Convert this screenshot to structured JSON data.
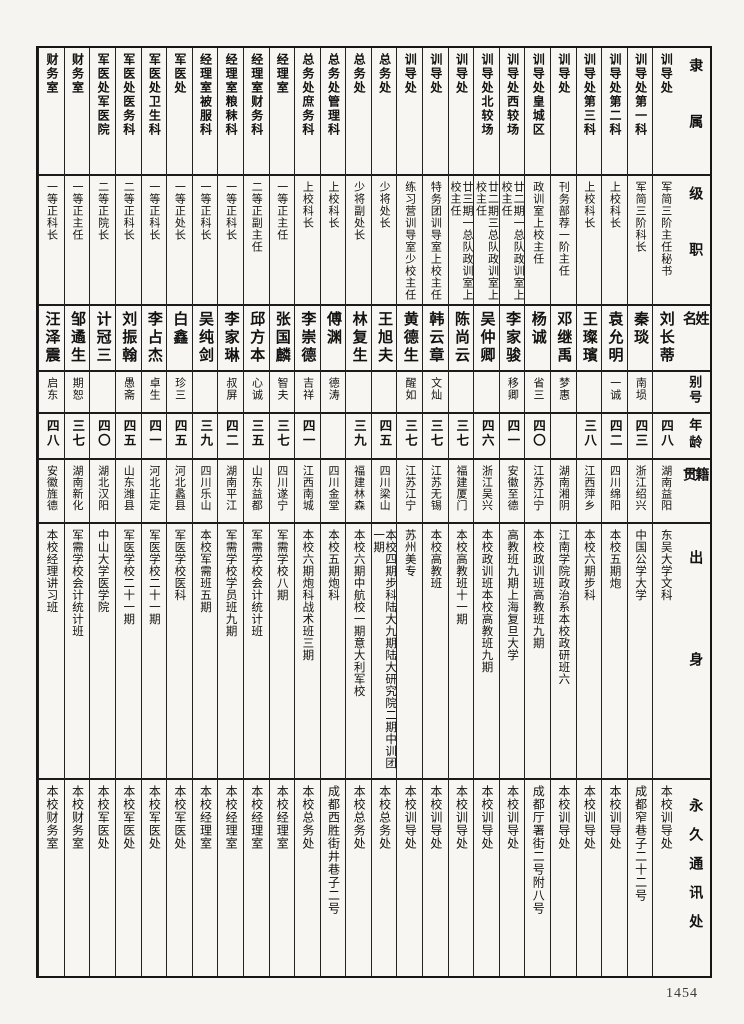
{
  "page": {
    "number": "1454"
  },
  "table": {
    "row_headers": {
      "affiliation": "隶属",
      "rank": "级职",
      "name": "姓名",
      "alias": "别号",
      "age": "年龄",
      "origin": "籍贯",
      "background": "出身",
      "address": "永久通讯处"
    },
    "people": [
      {
        "affiliation": "训导处",
        "rank": "军简三阶主任秘书",
        "name": "刘长蒂",
        "alias": "",
        "age": "四八",
        "origin": "湖南益阳",
        "background": "东吴大学文科",
        "address": "本校训导处"
      },
      {
        "affiliation": "训导处第一科",
        "rank": "军简三阶科长",
        "name": "秦琰",
        "alias": "南埙",
        "age": "四三",
        "origin": "浙江绍兴",
        "background": "中国公学大学",
        "address": "成都窄巷子二十二号"
      },
      {
        "affiliation": "训导处第二科",
        "rank": "上校科长",
        "name": "袁允明",
        "alias": "一诚",
        "age": "四二",
        "origin": "四川绵阳",
        "background": "本校五期炮",
        "address": "本校训导处"
      },
      {
        "affiliation": "训导处第三科",
        "rank": "上校科长",
        "name": "王璨璸",
        "alias": "",
        "age": "三八",
        "origin": "江西萍乡",
        "background": "本校六期步科",
        "address": "本校训导处"
      },
      {
        "affiliation": "训导处",
        "rank": "刊务部荐一阶主任",
        "name": "邓继禹",
        "alias": "梦惠",
        "age": "",
        "origin": "湖南湘阴",
        "background": "江南学院政治系本校政研班六",
        "address": "本校训导处"
      },
      {
        "affiliation": "训导处皇城区",
        "rank": "政训室上校主任",
        "name": "杨诚",
        "alias": "省三",
        "age": "四〇",
        "origin": "江苏江宁",
        "background": "本校政训班高教班九期",
        "address": "成都厅署街二号附八号"
      },
      {
        "affiliation": "训导处西较场",
        "rank": "廿二期一总队政训室上校主任",
        "name": "李家骏",
        "alias": "移卿",
        "age": "四一",
        "origin": "安徽至德",
        "background": "高教班九期上海复旦大学",
        "address": "本校训导处"
      },
      {
        "affiliation": "训导处北较场",
        "rank": "廿二期三总队政训室上校主任",
        "name": "吴仲卿",
        "alias": "",
        "age": "四六",
        "origin": "浙江吴兴",
        "background": "本校政训班本校高教班九期",
        "address": "本校训导处"
      },
      {
        "affiliation": "训导处",
        "rank": "廿三期一总队政训室上校主任",
        "name": "陈尚云",
        "alias": "",
        "age": "三七",
        "origin": "福建厦门",
        "background": "本校高教班十一期",
        "address": "本校训导处"
      },
      {
        "affiliation": "训导处",
        "rank": "特务团训导室上校主任",
        "name": "韩云章",
        "alias": "文灿",
        "age": "三七",
        "origin": "江苏无锡",
        "background": "本校高教班",
        "address": "本校训导处"
      },
      {
        "affiliation": "训导处",
        "rank": "练习营训导室少校主任",
        "name": "黄德生",
        "alias": "醒如",
        "age": "三七",
        "origin": "江苏江宁",
        "background": "苏州美专",
        "address": "本校训导处"
      },
      {
        "affiliation": "总务处",
        "rank": "少将处长",
        "name": "王旭夫",
        "alias": "",
        "age": "四五",
        "origin": "四川梁山",
        "background": "本校四期步科陆大九期陆大研究院二期中训团一期",
        "address": "本校总务处"
      },
      {
        "affiliation": "总务处",
        "rank": "少将副处长",
        "name": "林复生",
        "alias": "",
        "age": "三九",
        "origin": "福建林森",
        "background": "本校六期中航校一期意大利军校",
        "address": "本校总务处"
      },
      {
        "affiliation": "总务处管理科",
        "rank": "上校科长",
        "name": "傅渊",
        "alias": "德涛",
        "age": "",
        "origin": "四川金堂",
        "background": "本校五期炮科",
        "address": "成都西胜街井巷子二号"
      },
      {
        "affiliation": "总务处庶务科",
        "rank": "上校科长",
        "name": "李崇德",
        "alias": "吉祥",
        "age": "四一",
        "origin": "江西南城",
        "background": "本校六期炮科战术班三期",
        "address": "本校总务处"
      },
      {
        "affiliation": "经理室",
        "rank": "一等正主任",
        "name": "张国麟",
        "alias": "智夫",
        "age": "三七",
        "origin": "四川遂宁",
        "background": "军需学校八期",
        "address": "本校经理室"
      },
      {
        "affiliation": "经理室财务科",
        "rank": "二等正副主任",
        "name": "邱方本",
        "alias": "心诚",
        "age": "三五",
        "origin": "山东益都",
        "background": "军需学校会计统计班",
        "address": "本校经理室"
      },
      {
        "affiliation": "经理室粮秣科",
        "rank": "一等正科长",
        "name": "李家琳",
        "alias": "叔屏",
        "age": "四二",
        "origin": "湖南平江",
        "background": "军需学校学员班九期",
        "address": "本校经理室"
      },
      {
        "affiliation": "经理室被服科",
        "rank": "一等正科长",
        "name": "吴纯剑",
        "alias": "",
        "age": "三九",
        "origin": "四川乐山",
        "background": "本校军需班五期",
        "address": "本校经理室"
      },
      {
        "affiliation": "军医处",
        "rank": "一等正处长",
        "name": "白鑫",
        "alias": "珍三",
        "age": "四五",
        "origin": "河北蠡县",
        "background": "军医学校医科",
        "address": "本校军医处"
      },
      {
        "affiliation": "军医处卫生科",
        "rank": "一等正科长",
        "name": "李占杰",
        "alias": "卓生",
        "age": "四一",
        "origin": "河北正定",
        "background": "军医学校二十一期",
        "address": "本校军医处"
      },
      {
        "affiliation": "军医处医务科",
        "rank": "二等正科长",
        "name": "刘振翰",
        "alias": "愚斋",
        "age": "四五",
        "origin": "山东潍县",
        "background": "军医学校二十一期",
        "address": "本校军医处"
      },
      {
        "affiliation": "军医处军医院",
        "rank": "二等正院长",
        "name": "计冠三",
        "alias": "",
        "age": "四〇",
        "origin": "湖北汉阳",
        "background": "中山大学医学院",
        "address": "本校军医处"
      },
      {
        "affiliation": "财务室",
        "rank": "一等正主任",
        "name": "邹遹生",
        "alias": "期恕",
        "age": "三七",
        "origin": "湖南新化",
        "background": "军需学校会计统计班",
        "address": "本校财务室"
      },
      {
        "affiliation": "财务室",
        "rank": "一等正科长",
        "name": "汪泽震",
        "alias": "启东",
        "age": "四八",
        "origin": "安徽旌德",
        "background": "本校经理讲习班",
        "address": "本校财务室"
      }
    ]
  }
}
